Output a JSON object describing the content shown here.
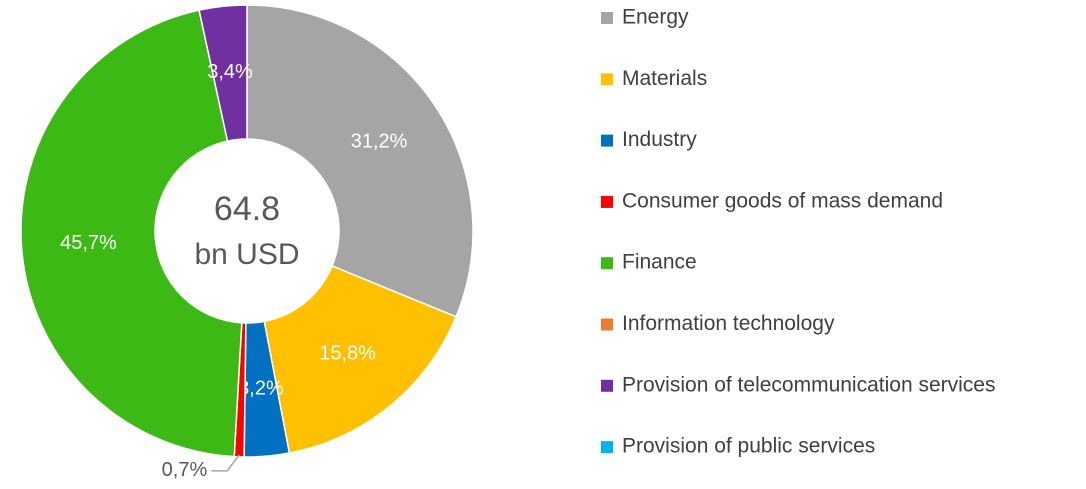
{
  "chart_data": {
    "type": "donut",
    "center_value": 64.8,
    "center_unit": "bn USD",
    "categories": [
      "Energy",
      "Materials",
      "Industry",
      "Consumer goods of mass demand",
      "Finance",
      "Information technology",
      "Provision of telecommunication services",
      "Provision of public services"
    ],
    "values": [
      31.2,
      15.8,
      3.2,
      0.7,
      45.7,
      0,
      3.4,
      0
    ],
    "value_labels": [
      "31,2%",
      "15,8%",
      "3,2%",
      "0,7%",
      "45,7%",
      null,
      "3,4%",
      null
    ],
    "colors": [
      "#a5a5a5",
      "#ffc000",
      "#0070c0",
      "#ff0000",
      "#3cb914",
      "#ed7d31",
      "#7030a0",
      "#00b0f0"
    ],
    "legend": "right"
  }
}
